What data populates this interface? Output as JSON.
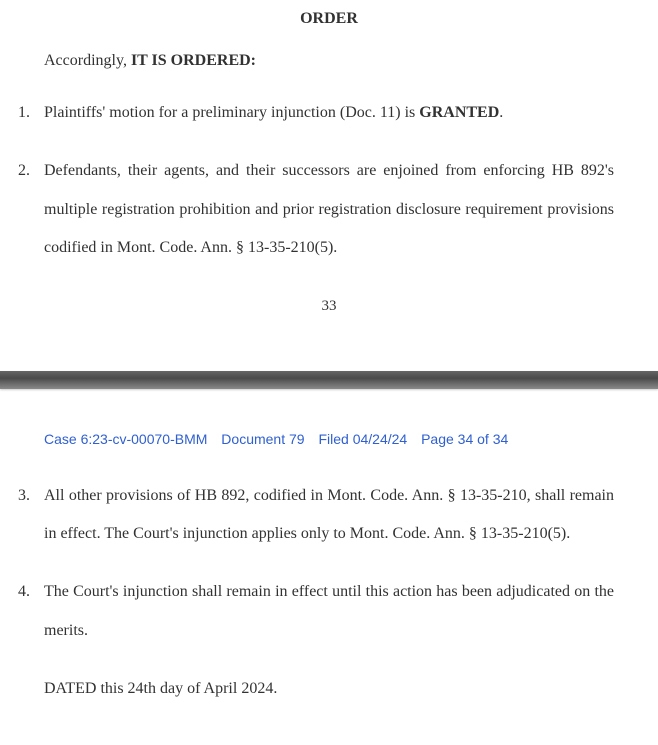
{
  "order": {
    "heading": "ORDER",
    "intro_prefix": "Accordingly, ",
    "intro_bold": "IT IS ORDERED:"
  },
  "items_page1": [
    {
      "prefix": "Plaintiffs' motion for a preliminary injunction (Doc. 11) is ",
      "bold": "GRANTED",
      "suffix": "."
    },
    {
      "text": "Defendants, their agents, and their successors are enjoined from enforcing HB 892's multiple registration prohibition and prior registration disclosure requirement provisions codified in Mont. Code. Ann. § 13-35-210(5)."
    }
  ],
  "page_number_1": "33",
  "header": {
    "case": "Case 6:23-cv-00070-BMM",
    "doc": "Document 79",
    "filed": "Filed 04/24/24",
    "page": "Page 34 of 34"
  },
  "items_page2": [
    {
      "text": "All other provisions of HB 892, codified in Mont. Code. Ann. § 13-35-210, shall remain in effect. The Court's injunction applies only to Mont. Code. Ann. § 13-35-210(5)."
    },
    {
      "text": "The Court's injunction shall remain in effect until this action has been adjudicated on the merits."
    }
  ],
  "dated": "DATED this 24th day of April 2024."
}
